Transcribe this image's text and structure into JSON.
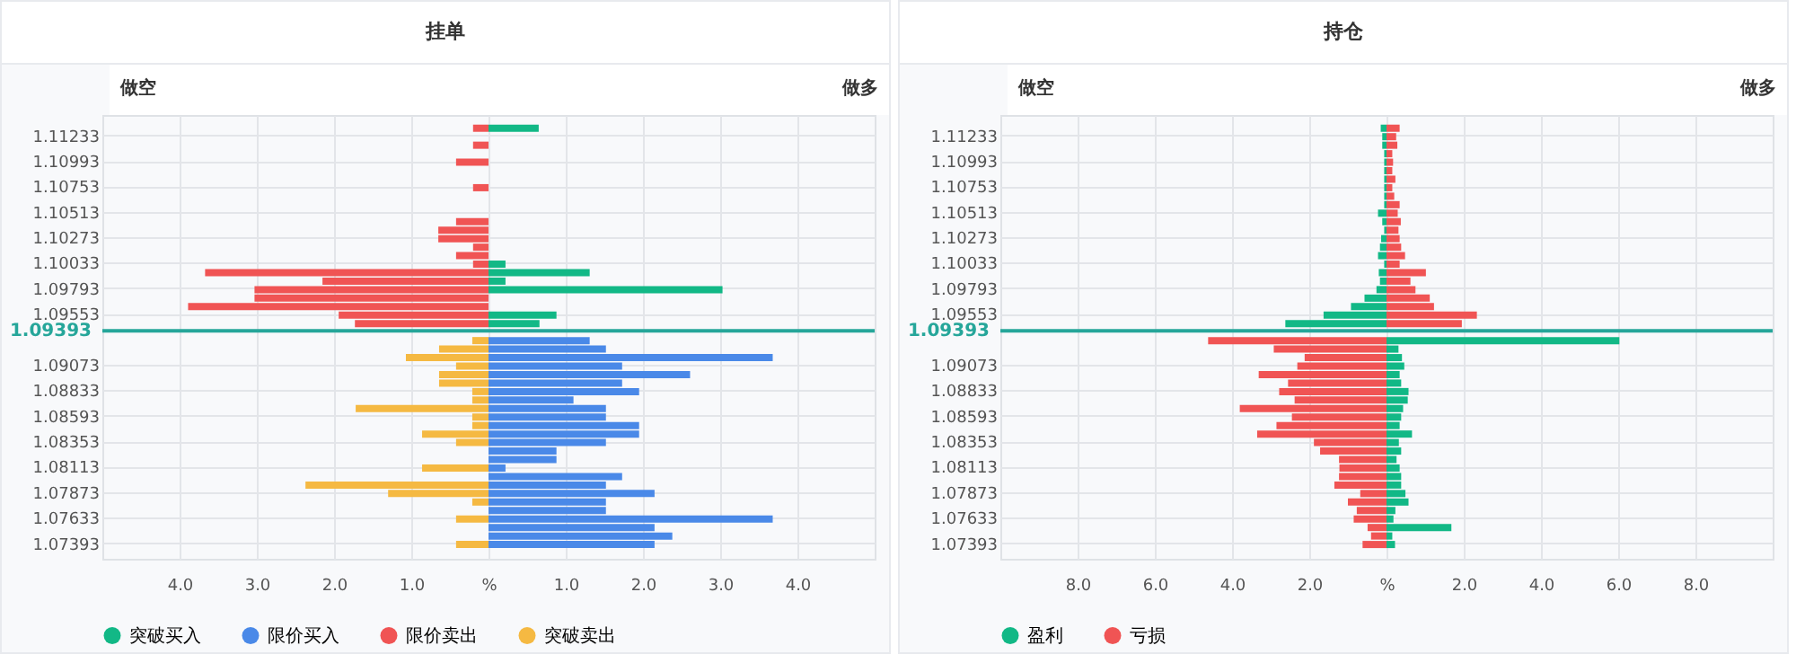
{
  "chart_data": [
    {
      "type": "bar",
      "title": "挂单",
      "orientation": "horizontal",
      "stacked": true,
      "annotations": [
        "做空",
        "做多"
      ],
      "x": [
        1.113,
        1.1114,
        1.1098,
        1.1074,
        1.1042,
        1.1034,
        1.1026,
        1.1018,
        1.101,
        1.1002,
        1.0994,
        1.0986,
        1.0978,
        1.097,
        1.0962,
        1.0954,
        1.0946,
        1.093,
        1.0922,
        1.0914,
        1.0906,
        1.0898,
        1.089,
        1.0882,
        1.0874,
        1.0866,
        1.0858,
        1.085,
        1.0842,
        1.0834,
        1.0826,
        1.0818,
        1.081,
        1.0802,
        1.0794,
        1.0786,
        1.0778,
        1.077,
        1.0762,
        1.0754,
        1.0746,
        1.0738
      ],
      "series": [
        {
          "name": "突破买入",
          "color": "#12b886",
          "values": [
            0.65,
            null,
            null,
            null,
            null,
            null,
            null,
            null,
            null,
            0.22,
            1.31,
            0.22,
            3.03,
            null,
            null,
            0.88,
            0.66,
            null,
            null,
            null,
            null,
            null,
            null,
            null,
            null,
            null,
            null,
            null,
            null,
            null,
            null,
            null,
            null,
            null,
            null,
            null,
            null,
            null,
            null,
            null,
            null,
            null
          ]
        },
        {
          "name": "限价买入",
          "color": "#4a89e8",
          "values": [
            null,
            null,
            null,
            null,
            null,
            null,
            null,
            null,
            null,
            null,
            null,
            null,
            null,
            null,
            null,
            null,
            null,
            1.31,
            1.52,
            3.68,
            1.73,
            2.61,
            1.73,
            1.95,
            1.1,
            1.52,
            1.52,
            1.95,
            1.95,
            1.52,
            0.88,
            0.88,
            0.22,
            1.73,
            1.52,
            2.15,
            1.52,
            1.52,
            3.68,
            2.15,
            2.38,
            2.15
          ]
        },
        {
          "name": "限价卖出",
          "color": "#f05454",
          "values": [
            -0.2,
            -0.2,
            -0.42,
            -0.2,
            -0.42,
            -0.65,
            -0.65,
            -0.2,
            -0.42,
            -0.2,
            -3.67,
            -2.15,
            -3.03,
            -3.03,
            -3.89,
            -1.94,
            -1.73,
            null,
            null,
            null,
            null,
            null,
            null,
            null,
            null,
            null,
            null,
            null,
            null,
            null,
            null,
            null,
            null,
            null,
            null,
            null,
            null,
            null,
            null,
            null,
            null,
            null
          ]
        },
        {
          "name": "突破卖出",
          "color": "#f5b942",
          "values": [
            null,
            null,
            null,
            null,
            null,
            null,
            null,
            null,
            null,
            null,
            null,
            null,
            null,
            null,
            null,
            null,
            null,
            -0.21,
            -0.64,
            -1.07,
            -0.42,
            -0.64,
            -0.64,
            -0.21,
            -0.21,
            -1.72,
            -0.21,
            -0.21,
            -0.86,
            -0.42,
            null,
            null,
            -0.86,
            null,
            -2.37,
            -1.3,
            -0.21,
            null,
            -0.42,
            null,
            null,
            -0.42
          ]
        }
      ],
      "xlim": [
        -5,
        5
      ],
      "xticks": [
        {
          "value": -4,
          "label": "4.0"
        },
        {
          "value": -3,
          "label": "3.0"
        },
        {
          "value": -2,
          "label": "2.0"
        },
        {
          "value": -1,
          "label": "1.0"
        },
        {
          "value": 0,
          "label": "%"
        },
        {
          "value": 1,
          "label": "1.0"
        },
        {
          "value": 2,
          "label": "2.0"
        },
        {
          "value": 3,
          "label": "3.0"
        },
        {
          "value": 4,
          "label": "4.0"
        }
      ],
      "ylim": [
        1.0733,
        1.1134
      ],
      "yticks": [
        1.11233,
        1.10993,
        1.10753,
        1.10513,
        1.10273,
        1.10033,
        1.09793,
        1.09553,
        1.09073,
        1.08833,
        1.08593,
        1.08353,
        1.08113,
        1.07873,
        1.07633,
        1.07393
      ],
      "ref_lines": [
        {
          "axis": "y",
          "value": 1.09393,
          "label": "1.09393",
          "color": "#26a69a"
        }
      ],
      "grid": true,
      "legend": "bottom"
    },
    {
      "type": "bar",
      "title": "持仓",
      "orientation": "horizontal",
      "stacked": true,
      "annotations": [
        "做空",
        "做多"
      ],
      "x": [
        1.113,
        1.1122,
        1.1114,
        1.1106,
        1.1098,
        1.109,
        1.1082,
        1.1074,
        1.1066,
        1.1058,
        1.105,
        1.1042,
        1.1034,
        1.1026,
        1.1018,
        1.101,
        1.1002,
        1.0994,
        1.0986,
        1.0978,
        1.097,
        1.0962,
        1.0954,
        1.0946,
        1.093,
        1.0922,
        1.0914,
        1.0906,
        1.0898,
        1.089,
        1.0882,
        1.0874,
        1.0866,
        1.0858,
        1.085,
        1.0842,
        1.0834,
        1.0826,
        1.0818,
        1.081,
        1.0802,
        1.0794,
        1.0786,
        1.0778,
        1.077,
        1.0762,
        1.0754,
        1.0746,
        1.0738
      ],
      "series": [
        {
          "name": "盈利",
          "color": "#12b886",
          "values": [
            -0.15,
            -0.11,
            -0.11,
            -0.06,
            -0.06,
            -0.06,
            -0.06,
            -0.06,
            -0.06,
            -0.06,
            -0.22,
            -0.11,
            -0.06,
            -0.14,
            -0.17,
            -0.22,
            -0.06,
            -0.2,
            -0.17,
            -0.26,
            -0.57,
            -0.92,
            -1.63,
            -2.62,
            6.03,
            0.31,
            0.4,
            0.46,
            0.34,
            0.38,
            0.57,
            0.55,
            0.43,
            0.38,
            0.34,
            0.66,
            0.32,
            0.38,
            0.26,
            0.34,
            0.38,
            0.38,
            0.49,
            0.57,
            0.23,
            0.18,
            1.68,
            0.15,
            0.22
          ]
        },
        {
          "name": "亏损",
          "color": "#f05454",
          "values": [
            0.34,
            0.25,
            0.28,
            0.15,
            0.17,
            0.15,
            0.23,
            0.15,
            0.2,
            0.34,
            0.29,
            0.37,
            0.31,
            0.34,
            0.38,
            0.48,
            0.34,
            1.02,
            0.62,
            0.75,
            1.12,
            1.23,
            2.34,
            1.95,
            -4.62,
            -2.92,
            -2.12,
            -2.31,
            -3.31,
            -2.55,
            -2.78,
            -2.38,
            -3.8,
            -2.45,
            -2.85,
            -3.35,
            -1.88,
            -1.72,
            -1.23,
            -1.22,
            -1.23,
            -1.35,
            -0.68,
            -1.0,
            -0.77,
            -0.85,
            -0.49,
            -0.4,
            -0.62
          ]
        }
      ],
      "xlim": [
        -10,
        10
      ],
      "xticks": [
        {
          "value": -8,
          "label": "8.0"
        },
        {
          "value": -6,
          "label": "6.0"
        },
        {
          "value": -4,
          "label": "4.0"
        },
        {
          "value": -2,
          "label": "2.0"
        },
        {
          "value": 0,
          "label": "%"
        },
        {
          "value": 2,
          "label": "2.0"
        },
        {
          "value": 4,
          "label": "4.0"
        },
        {
          "value": 6,
          "label": "6.0"
        },
        {
          "value": 8,
          "label": "8.0"
        }
      ],
      "ylim": [
        1.0733,
        1.1134
      ],
      "yticks": [
        1.11233,
        1.10993,
        1.10753,
        1.10513,
        1.10273,
        1.10033,
        1.09793,
        1.09553,
        1.09073,
        1.08833,
        1.08593,
        1.08353,
        1.08113,
        1.07873,
        1.07633,
        1.07393
      ],
      "ref_lines": [
        {
          "axis": "y",
          "value": 1.09393,
          "label": "1.09393",
          "color": "#26a69a"
        }
      ],
      "grid": true,
      "legend": "bottom"
    }
  ]
}
